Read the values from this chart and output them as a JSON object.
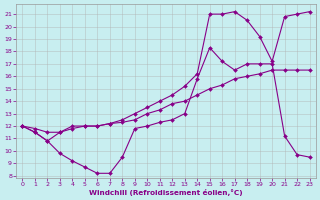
{
  "xlabel": "Windchill (Refroidissement éolien,°C)",
  "background_color": "#c8eef0",
  "grid_color": "#b0b0b0",
  "line_color": "#880088",
  "xlim": [
    -0.5,
    23.5
  ],
  "ylim": [
    7.8,
    21.8
  ],
  "yticks": [
    8,
    9,
    10,
    11,
    12,
    13,
    14,
    15,
    16,
    17,
    18,
    19,
    20,
    21
  ],
  "xticks": [
    0,
    1,
    2,
    3,
    4,
    5,
    6,
    7,
    8,
    9,
    10,
    11,
    12,
    13,
    14,
    15,
    16,
    17,
    18,
    19,
    20,
    21,
    22,
    23
  ],
  "line1_x": [
    0,
    1,
    2,
    3,
    4,
    5,
    6,
    7,
    8,
    9,
    10,
    11,
    12,
    13,
    14,
    15,
    16,
    17,
    18,
    19,
    20,
    21,
    22,
    23
  ],
  "line1_y": [
    12.0,
    11.8,
    11.5,
    11.5,
    11.8,
    12.0,
    12.0,
    12.2,
    12.3,
    12.5,
    13.0,
    13.3,
    13.8,
    14.0,
    14.5,
    15.0,
    15.3,
    15.8,
    16.0,
    16.2,
    16.5,
    16.5,
    16.5,
    16.5
  ],
  "line2_x": [
    0,
    1,
    2,
    3,
    4,
    5,
    6,
    7,
    8,
    9,
    10,
    11,
    12,
    13,
    14,
    15,
    16,
    17,
    18,
    19,
    20,
    21,
    22,
    23
  ],
  "line2_y": [
    12.0,
    11.5,
    10.8,
    9.8,
    9.2,
    8.7,
    8.2,
    8.2,
    9.5,
    11.8,
    12.0,
    12.3,
    12.5,
    13.0,
    15.8,
    18.3,
    17.2,
    16.5,
    17.0,
    17.0,
    17.0,
    11.2,
    9.7,
    9.5
  ],
  "line3_x": [
    0,
    1,
    2,
    3,
    4,
    5,
    6,
    7,
    8,
    9,
    10,
    11,
    12,
    13,
    14,
    15,
    16,
    17,
    18,
    19,
    20,
    21,
    22,
    23
  ],
  "line3_y": [
    12.0,
    11.5,
    10.8,
    11.5,
    12.0,
    12.0,
    12.0,
    12.2,
    12.5,
    13.0,
    13.5,
    14.0,
    14.5,
    15.2,
    16.2,
    21.0,
    21.0,
    21.2,
    20.5,
    19.2,
    17.2,
    20.8,
    21.0,
    21.2
  ]
}
